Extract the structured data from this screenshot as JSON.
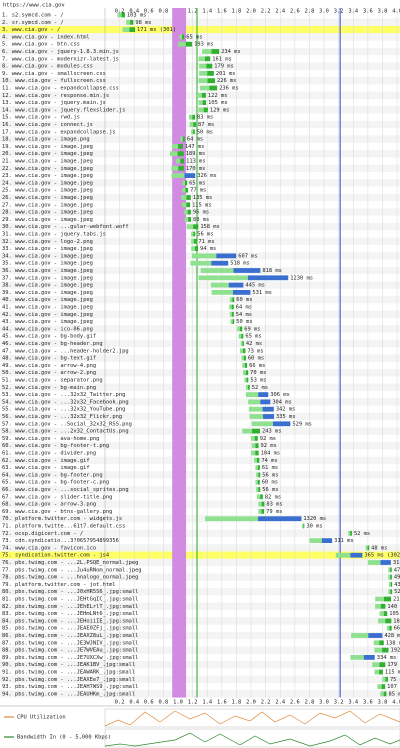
{
  "chart_data": {
    "type": "waterfall",
    "title": "https://www.cia.gov",
    "xlim": [
      0,
      4.04
    ],
    "xticks": [
      0.2,
      0.4,
      0.6,
      0.8,
      {
        "value": 1,
        "label": "1.0"
      },
      1.2,
      1.4,
      1.6,
      1.8,
      {
        "value": 2,
        "label": "2.0"
      },
      2.2,
      2.4,
      2.6,
      2.8,
      {
        "value": 3,
        "label": "3.0"
      },
      3.2,
      3.4,
      3.6,
      3.8,
      {
        "value": 4,
        "label": "4.0"
      }
    ],
    "highlight_rows": [
      2,
      74
    ],
    "events": [
      {
        "start": 0.92,
        "end": 1.11,
        "color": "#d18be0"
      },
      {
        "start": 1.26,
        "end": 1.26,
        "color": "#22aa22"
      },
      {
        "start": 3.22,
        "end": 3.22,
        "color": "#3344cc"
      }
    ],
    "cpu_label": "CPU Utilization",
    "bandwidth_label": "Bandwidth In (0 - 5,000 Kbps)",
    "rows": [
      [
        "1. s2.symcd.com - /",
        0.17,
        103,
        "103 ms"
      ],
      [
        "2. sr.symcd.com - /",
        0.29,
        98,
        "98 ms"
      ],
      [
        "3. www.cia.gov - /",
        0.24,
        171,
        "171 ms (301)"
      ],
      [
        "4. www.cia.gov - index.html",
        1.02,
        65,
        "65 ms"
      ],
      [
        "5. www.cia.gov - btn.css",
        1.0,
        193,
        "193 ms"
      ],
      [
        "6. www.cia.gov - jquery-1.8.3.min.js",
        1.33,
        234,
        "234 ms"
      ],
      [
        "7. www.cia.gov - modernizr-latest.js",
        1.28,
        161,
        "161 ms"
      ],
      [
        "8. www.cia.gov - modules.css",
        1.29,
        179,
        "179 ms"
      ],
      [
        "9. www.cia.gov - smallscreen.css",
        1.29,
        201,
        "201 ms"
      ],
      [
        "10. www.cia.gov - fullscreen.css",
        1.28,
        226,
        "226 ms"
      ],
      [
        "11. www.cia.gov - expandcollapse.css",
        1.3,
        236,
        "236 ms"
      ],
      [
        "12. www.cia.gov - response.min.js",
        1.26,
        122,
        "122 ms"
      ],
      [
        "13. www.cia.gov - jquery.main.js",
        1.28,
        105,
        "105 ms"
      ],
      [
        "14. www.cia.gov - jquery.flexslider.js",
        1.28,
        129,
        "129 ms"
      ],
      [
        "15. www.cia.gov - rwd.js",
        1.15,
        83,
        "83 ms"
      ],
      [
        "16. www.cia.gov - connect.js",
        1.16,
        87,
        "87 ms"
      ],
      [
        "17. www.cia.gov - expandcollapse.js",
        1.18,
        50,
        "50 ms"
      ],
      [
        "18. www.cia.gov - image.png",
        1.03,
        64,
        "64 ms"
      ],
      [
        "19. www.cia.gov - image.jpeg",
        0.92,
        147,
        "147 ms"
      ],
      [
        "20. www.cia.gov - image.jpeg",
        0.89,
        189,
        "189 ms"
      ],
      [
        "21. www.cia.gov - image.jpeg",
        0.97,
        113,
        "113 ms"
      ],
      [
        "22. www.cia.gov - image.jpeg",
        0.91,
        170,
        "170 ms"
      ],
      [
        "23. www.cia.gov - image.jpeg",
        0.91,
        326,
        "326 ms"
      ],
      [
        "24. www.cia.gov - image.jpeg",
        1.06,
        65,
        "65 ms"
      ],
      [
        "25. www.cia.gov - image.jpeg",
        1.06,
        77,
        "77 ms"
      ],
      [
        "26. www.cia.gov - image.jpeg",
        1.04,
        135,
        "135 ms"
      ],
      [
        "27. www.cia.gov - image.jpeg",
        1.05,
        115,
        "115 ms"
      ],
      [
        "28. www.cia.gov - image.jpeg",
        1.08,
        96,
        "96 ms"
      ],
      [
        "29. www.cia.gov - image.jpeg",
        1.09,
        88,
        "88 ms"
      ],
      [
        "30. www.cia.gov - ...gular-webfont.woff",
        1.12,
        158,
        "158 ms"
      ],
      [
        "31. www.cia.gov - jquery.tabs.js",
        1.18,
        56,
        "56 ms"
      ],
      [
        "32. www.cia.gov - logo-2.png",
        1.18,
        71,
        "71 ms"
      ],
      [
        "33. www.cia.gov - image.jpeg",
        1.18,
        94,
        "94 ms"
      ],
      [
        "34. www.cia.gov - image.jpeg",
        1.19,
        607,
        "607 ms"
      ],
      [
        "35. www.cia.gov - image.jpeg",
        1.17,
        518,
        "518 ms"
      ],
      [
        "36. www.cia.gov - image.jpeg",
        1.31,
        818,
        "818 ms"
      ],
      [
        "37. www.cia.gov - image.jpeg",
        1.28,
        1230,
        "1230 ms"
      ],
      [
        "38. www.cia.gov - image.jpeg",
        1.45,
        445,
        "445 ms"
      ],
      [
        "39. www.cia.gov - image.jpeg",
        1.46,
        531,
        "531 ms"
      ],
      [
        "40. www.cia.gov - image.jpeg",
        1.71,
        60,
        "60 ms"
      ],
      [
        "41. www.cia.gov - image.jpeg",
        1.7,
        64,
        "64 ms"
      ],
      [
        "42. www.cia.gov - image.jpeg",
        1.71,
        54,
        "54 ms"
      ],
      [
        "43. www.cia.gov - image.jpeg",
        1.72,
        50,
        "50 ms"
      ],
      [
        "44. www.cia.gov - ico-06.png",
        1.81,
        69,
        "69 ms"
      ],
      [
        "45. www.cia.gov - bg-body.gif",
        1.83,
        65,
        "65 ms"
      ],
      [
        "46. www.cia.gov - bg-header.png",
        1.86,
        42,
        "42 ms"
      ],
      [
        "47. www.cia.gov - ...header-holder2.jpg",
        1.85,
        73,
        "73 ms"
      ],
      [
        "48. www.cia.gov - bg-text.gif",
        1.87,
        60,
        "60 ms"
      ],
      [
        "49. www.cia.gov - arrow-4.png",
        1.88,
        66,
        "66 ms"
      ],
      [
        "50. www.cia.gov - arrow-2.png",
        1.89,
        70,
        "70 ms"
      ],
      [
        "51. www.cia.gov - separator.png",
        1.91,
        53,
        "53 ms"
      ],
      [
        "52. www.cia.gov - bg-main.png",
        1.93,
        52,
        "52 ms"
      ],
      [
        "53. www.cia.gov - ...32x32_Twitter.png",
        1.93,
        306,
        "306 ms"
      ],
      [
        "54. www.cia.gov - ...32x32_Facebook.png",
        1.96,
        304,
        "304 ms"
      ],
      [
        "55. www.cia.gov - ...32x32_YouTube.png",
        1.97,
        342,
        "342 ms"
      ],
      [
        "56. www.cia.gov - ...32x32_Flickr.png",
        1.98,
        335,
        "335 ms"
      ],
      [
        "57. www.cia.gov - ..Social_32x32_RSS.png",
        2.01,
        529,
        "529 ms"
      ],
      [
        "58. www.cia.gov - ...2x32_ContactUs.png",
        1.88,
        243,
        "243 ms"
      ],
      [
        "59. www.cia.gov - ava-home.png",
        2.0,
        92,
        "92 ms"
      ],
      [
        "60. www.cia.gov - bg-footer-t.png",
        2.01,
        92,
        "92 ms"
      ],
      [
        "61. www.cia.gov - divider.png",
        2.0,
        104,
        "104 ms"
      ],
      [
        "62. www.cia.gov - image.gif",
        2.04,
        74,
        "74 ms"
      ],
      [
        "63. www.cia.gov - image.gif",
        2.06,
        61,
        "61 ms"
      ],
      [
        "64. www.cia.gov - bg-footer.png",
        2.07,
        56,
        "56 ms"
      ],
      [
        "65. www.cia.gov - bg-footer-c.png",
        2.06,
        60,
        "60 ms"
      ],
      [
        "66. www.cia.gov - ...social_sprites.png",
        2.07,
        56,
        "56 ms"
      ],
      [
        "67. www.cia.gov - slider-title.png",
        2.08,
        82,
        "82 ms"
      ],
      [
        "68. www.cia.gov - arrow-3.png",
        2.1,
        83,
        "83 ms"
      ],
      [
        "69. www.cia.gov - btns-gallery.png",
        2.1,
        79,
        "79 ms"
      ],
      [
        "70. platform.twitter.com - widgets.js",
        1.37,
        1320,
        "1320 ms"
      ],
      [
        "71. platform.twitte...61t7.default.css",
        2.7,
        30,
        "30 ms"
      ],
      [
        "72. ocsp.digicert.com - /",
        3.33,
        52,
        "52 ms"
      ],
      [
        "73. cdn.syndicatio...3?0657954899356",
        2.8,
        311,
        "311 ms"
      ],
      [
        "74. www.cia.gov - favicon.ico",
        3.57,
        48,
        "48 ms"
      ],
      [
        "75. syndication.twitter.com - js4",
        3.16,
        365,
        "365 ms (302)"
      ],
      [
        "76. pbs.twimg.com - ...2L.PSQE_normal.jpeg",
        3.6,
        315,
        "315 ms"
      ],
      [
        "77. pbs.twimg.com - ...Ju4uRNom_normal.jpeg",
        3.88,
        47,
        "47 ms"
      ],
      [
        "78. pbs.twimg.com - ...hnalogo_normal.jpeg",
        3.88,
        49,
        "49 ms"
      ],
      [
        "79. platform.twitter.com - jot.html",
        3.89,
        43,
        "43 ms"
      ],
      [
        "80. pbs.twimg.com - ...J0xHR5S6_.jpg:small",
        3.88,
        52,
        "52 ms"
      ],
      [
        "81. pbs.twimg.com - ...JEHtGqIC_.jpg:small",
        3.7,
        218,
        "218 ms"
      ],
      [
        "82. pbs.twimg.com - ...JEhELrlT_.jpg:small",
        3.7,
        140,
        "140 ms"
      ],
      [
        "83. pbs.twimg.com - ...JEHmLNt6_.jpg:small",
        3.76,
        105,
        "105 ms"
      ],
      [
        "84. pbs.twimg.com - ...JEHoiiIE_.jpg:small",
        3.74,
        181,
        "181 ms"
      ],
      [
        "85. pbs.twimg.com - ...JEAE0ZFj_.jpg:small",
        3.86,
        66,
        "66 ms"
      ],
      [
        "86. pbs.twimg.com - ...JEAXZ8uL_.jpg:small",
        3.37,
        428,
        "428 ms"
      ],
      [
        "87. pbs.twimg.com - ...JE3WJNIV_.jpg:small",
        3.68,
        138,
        "138 ms"
      ],
      [
        "88. pbs.twimg.com - ...JE7WVEAu_.jpg:small",
        3.69,
        192,
        "192 ms"
      ],
      [
        "89. pbs.twimg.com - ...JE7UXCXw_.jpg:small",
        3.36,
        334,
        "334 ms"
      ],
      [
        "90. pbs.twimg.com - ...JEAK1BV_.jpg:small",
        3.66,
        179,
        "179 ms"
      ],
      [
        "91. pbs.twimg.com - ...JEAWARK_.jpg:small",
        3.69,
        115,
        "115 ms"
      ],
      [
        "92. pbs.twimg.com - ...JEAXEe7_.jpg:small",
        3.8,
        75,
        "75 ms"
      ],
      [
        "93. pbs.twimg.com - ...JEAH7WS9_.jpg:small",
        3.73,
        107,
        "107 ms"
      ],
      [
        "94. pbs.twimg.com - ...JEAUHKm_.jpg:small",
        3.77,
        85,
        "85 ms"
      ]
    ]
  }
}
